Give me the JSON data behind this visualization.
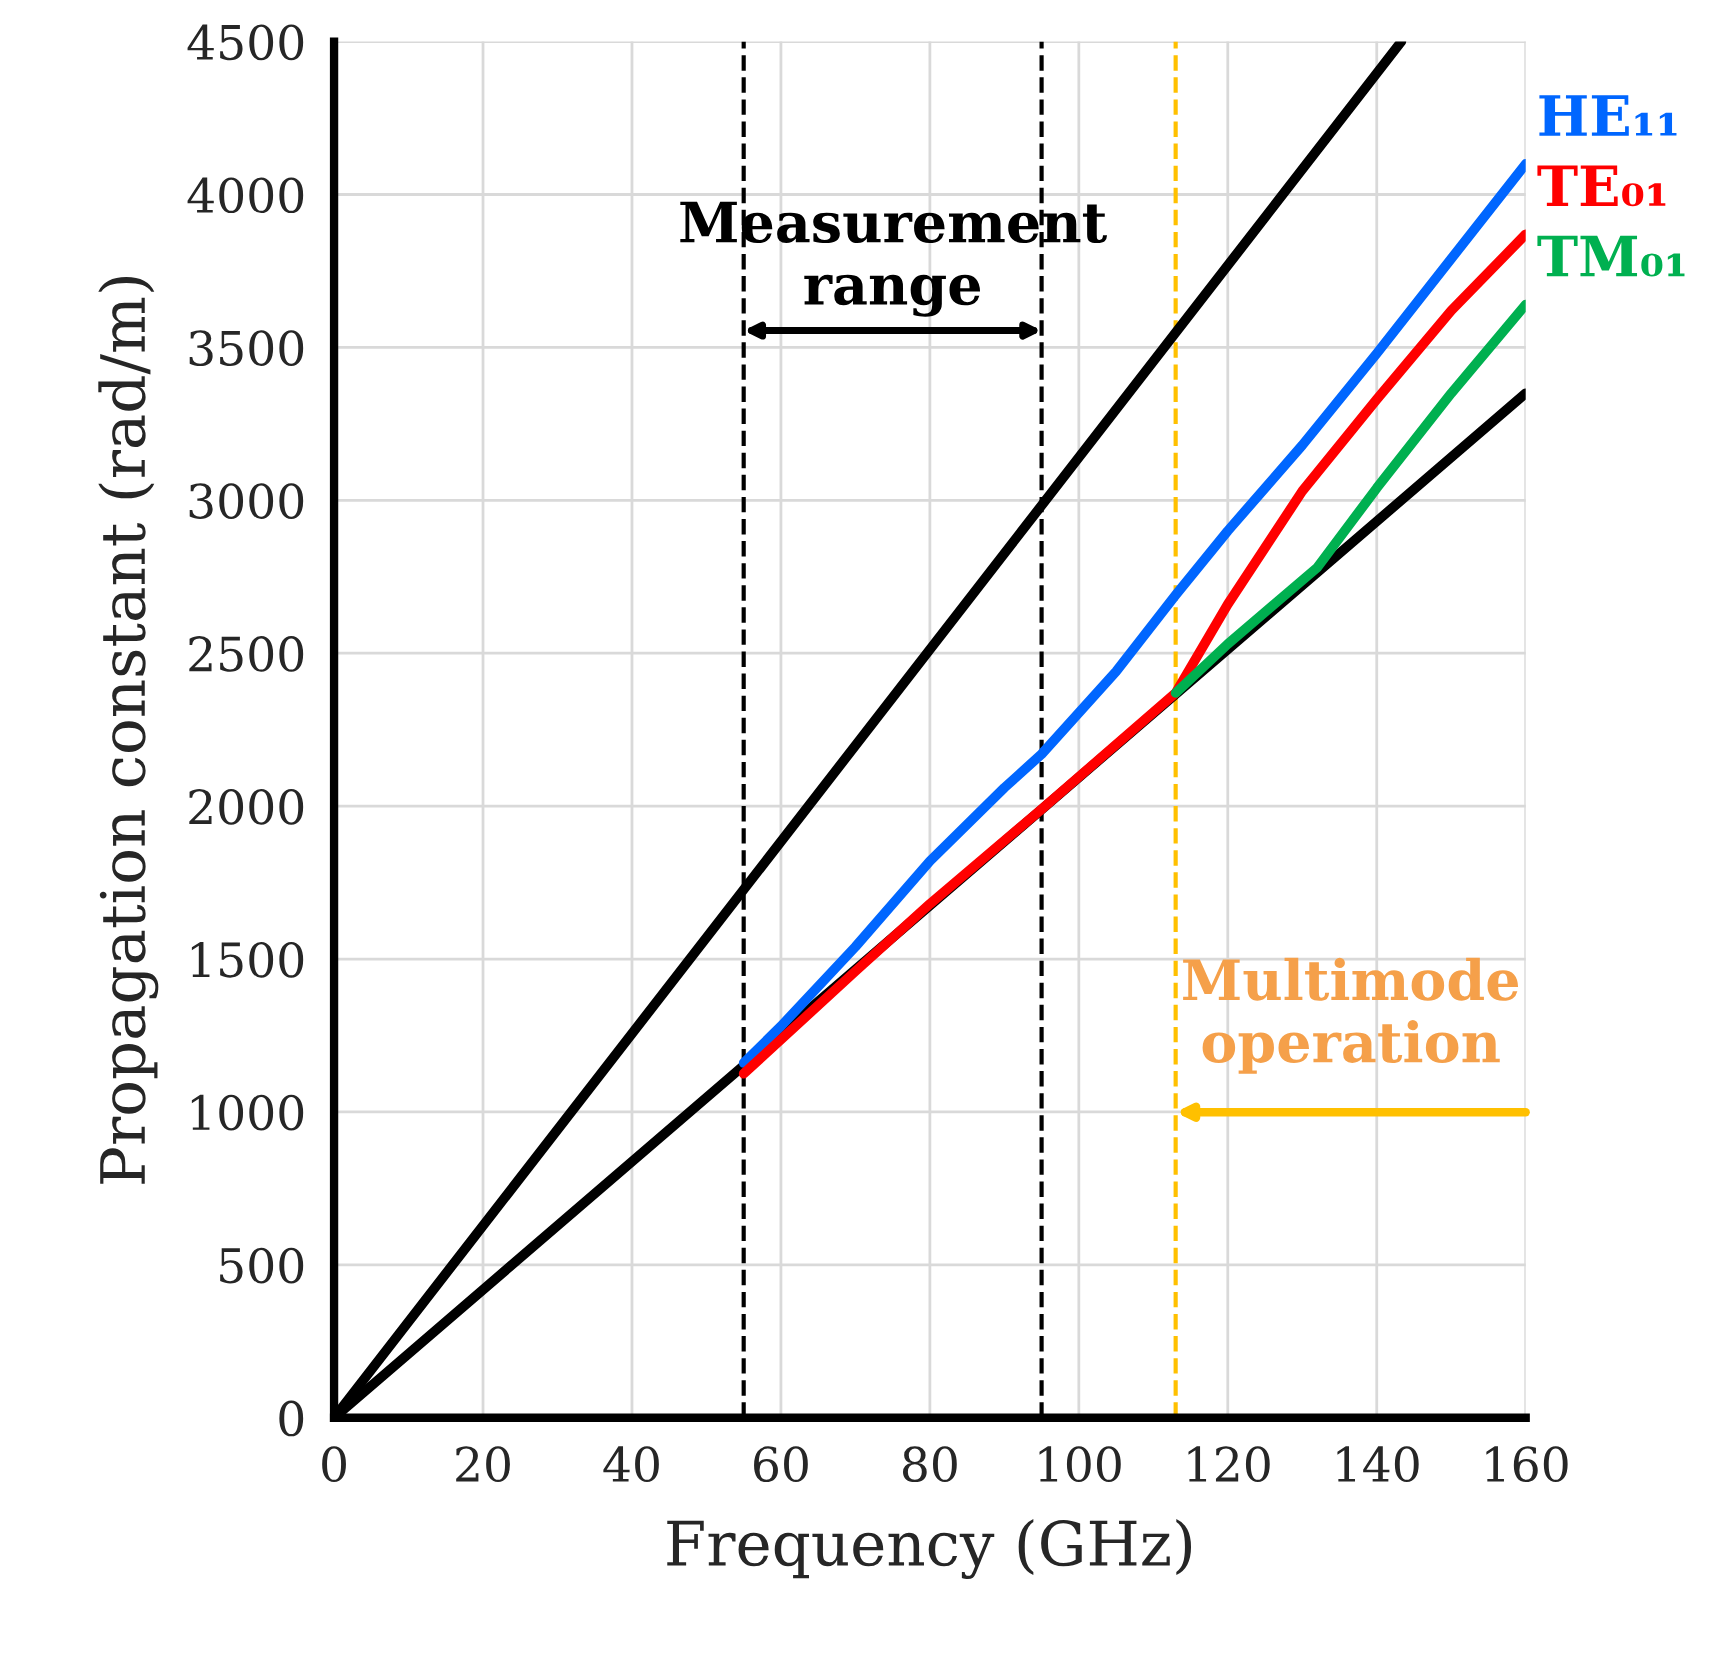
{
  "chart_data": {
    "type": "line",
    "xlabel": "Frequency (GHz)",
    "ylabel": "Propagation constant (rad/m)",
    "xlim": [
      0,
      160
    ],
    "ylim": [
      0,
      4500
    ],
    "xticks": [
      0,
      20,
      40,
      60,
      80,
      100,
      120,
      140,
      160
    ],
    "yticks": [
      0,
      500,
      1000,
      1500,
      2000,
      2500,
      3000,
      3500,
      4000,
      4500
    ],
    "grid": true,
    "legend": false,
    "marker": "none",
    "line_style": "solid",
    "series": [
      {
        "color": "#000000",
        "x": [
          0,
          143.3
        ],
        "values": [
          0,
          4500
        ]
      },
      {
        "color": "#000000",
        "x": [
          0,
          160
        ],
        "values": [
          0,
          3350
        ]
      },
      {
        "name": "HE₁₁",
        "color": "#0066ff",
        "x": [
          55,
          60,
          70,
          80,
          90,
          95,
          105,
          113,
          120,
          130,
          140,
          150,
          160
        ],
        "values": [
          1160,
          1280,
          1540,
          1820,
          2060,
          2170,
          2440,
          2690,
          2900,
          3180,
          3480,
          3790,
          4100
        ]
      },
      {
        "name": "TE₀₁",
        "color": "#ff0000",
        "x": [
          55,
          70,
          80,
          95,
          113,
          120,
          130,
          140,
          150,
          160
        ],
        "values": [
          1125,
          1460,
          1680,
          1990,
          2370,
          2660,
          3030,
          3330,
          3620,
          3870
        ]
      },
      {
        "name": "TM₀₁",
        "color": "#00b050",
        "x": [
          113,
          120,
          132,
          140,
          150,
          160
        ],
        "values": [
          2370,
          2530,
          2780,
          3040,
          3350,
          3640
        ]
      }
    ],
    "ref_lines": [
      {
        "axis": "x",
        "value": 55,
        "color": "#000000",
        "line_style": "dashed"
      },
      {
        "axis": "x",
        "value": 95,
        "color": "#000000",
        "line_style": "dashed"
      },
      {
        "axis": "x",
        "value": 113,
        "color": "#ffc000",
        "line_style": "dashed"
      }
    ],
    "annotations": [
      "Measurement\nrange",
      "Multimode\noperation"
    ]
  }
}
